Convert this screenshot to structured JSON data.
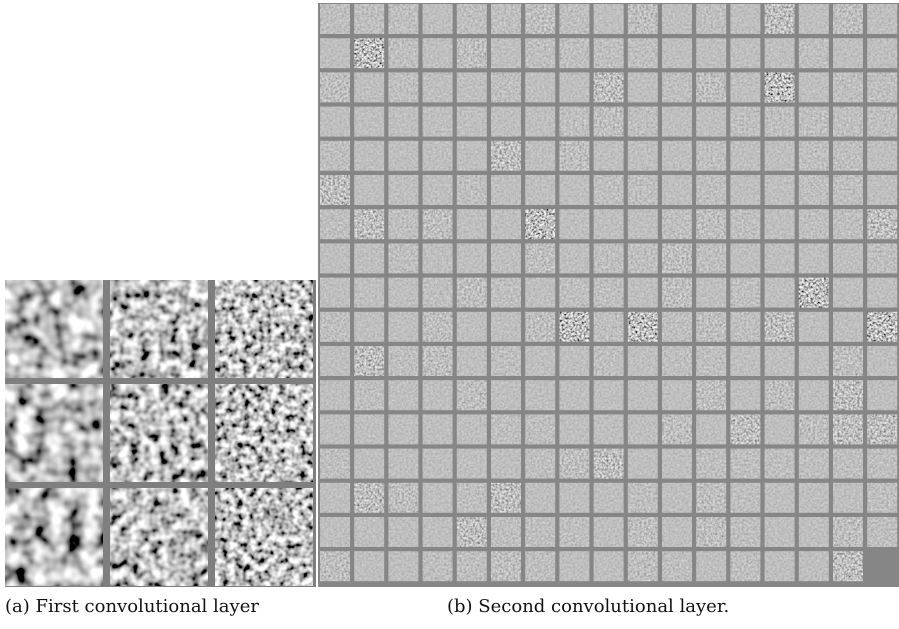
{
  "figure": {
    "panels": [
      {
        "caption": "(a) First convolutional layer"
      },
      {
        "caption": "(b) Second convolutional layer."
      }
    ]
  }
}
